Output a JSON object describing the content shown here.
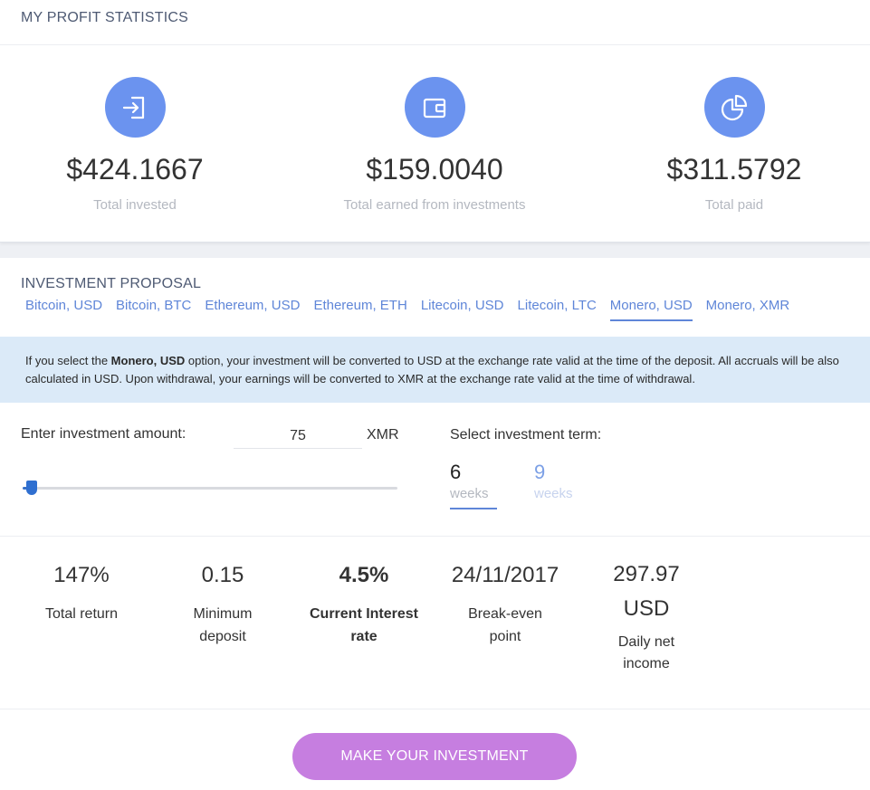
{
  "profit_statistics": {
    "title": "MY PROFIT STATISTICS",
    "stats": [
      {
        "icon": "sign-in-icon",
        "amount": "$424.1667",
        "caption": "Total invested"
      },
      {
        "icon": "wallet-icon",
        "amount": "$159.0040",
        "caption": "Total earned from investments"
      },
      {
        "icon": "pie-chart-icon",
        "amount": "$311.5792",
        "caption": "Total paid"
      }
    ]
  },
  "proposal": {
    "title": "INVESTMENT PROPOSAL",
    "tabs": [
      {
        "label": "Bitcoin, USD",
        "active": false
      },
      {
        "label": "Bitcoin, BTC",
        "active": false
      },
      {
        "label": "Ethereum, USD",
        "active": false
      },
      {
        "label": "Ethereum, ETH",
        "active": false
      },
      {
        "label": "Litecoin, USD",
        "active": false
      },
      {
        "label": "Litecoin, LTC",
        "active": false
      },
      {
        "label": "Monero, USD",
        "active": true
      },
      {
        "label": "Monero, XMR",
        "active": false
      }
    ],
    "info": {
      "prefix": "If you select the ",
      "option": "Monero, USD",
      "suffix": " option, your investment will be converted to USD at the exchange rate valid at the time of the deposit. All accruals will be also calculated in USD. Upon withdrawal, your earnings will be converted to XMR at the exchange rate valid at the time of withdrawal."
    },
    "amount_label": "Enter investment amount:",
    "amount_value": "75",
    "amount_unit": "XMR",
    "slider_level": 0.02,
    "term_label": "Select investment term:",
    "terms": [
      {
        "num": "6",
        "unit": "weeks",
        "active": true
      },
      {
        "num": "9",
        "unit": "weeks",
        "active": false
      }
    ],
    "metrics": [
      {
        "value": "147%",
        "label": "Total return",
        "bold": false
      },
      {
        "value": "0.15",
        "label": "Minimum deposit",
        "bold": false
      },
      {
        "value": "4.5%",
        "label": "Current Interest rate",
        "bold": true
      },
      {
        "value": "24/11/2017",
        "label": "Break-even point",
        "bold": false
      },
      {
        "value": "297.97 USD",
        "label": "Daily net income",
        "bold": false
      }
    ],
    "cta_label": "MAKE YOUR INVESTMENT"
  },
  "colors": {
    "accent": "#6b93ef",
    "tab": "#5f86d8",
    "info_bg": "#dbeaf8",
    "cta": "#c67ee0"
  }
}
